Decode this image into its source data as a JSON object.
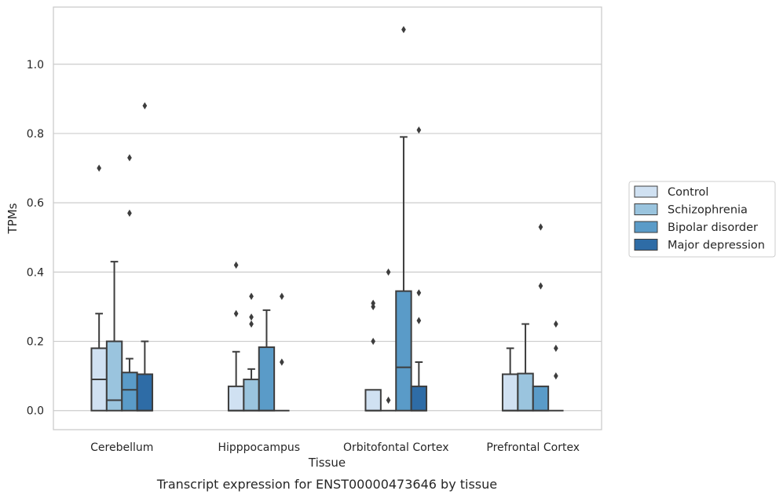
{
  "chart_data": {
    "type": "box",
    "caption": "Transcript expression for ENST00000473646 by tissue",
    "xlabel": "Tissue",
    "ylabel": "TPMs",
    "ylim": [
      -0.055,
      1.165
    ],
    "yticks": [
      0.0,
      0.2,
      0.4,
      0.6,
      0.8,
      1.0
    ],
    "ytick_labels": [
      "0.0",
      "0.2",
      "0.4",
      "0.6",
      "0.8",
      "1.0"
    ],
    "grid": "horizontal",
    "legend_position": "right",
    "categories": [
      "Cerebellum",
      "Hipppocampus",
      "Orbitofontal Cortex",
      "Prefrontal Cortex"
    ],
    "series": [
      {
        "name": "Control",
        "color": "#d0e1f2",
        "boxes": [
          {
            "q1": 0.0,
            "median": 0.09,
            "q3": 0.18,
            "whisker_low": 0.0,
            "whisker_high": 0.28,
            "outliers": [
              0.7
            ]
          },
          {
            "q1": 0.0,
            "median": 0.0,
            "q3": 0.07,
            "whisker_low": 0.0,
            "whisker_high": 0.17,
            "outliers": [
              0.28,
              0.42
            ]
          },
          {
            "q1": 0.0,
            "median": 0.0,
            "q3": 0.06,
            "whisker_low": 0.0,
            "whisker_high": 0.06,
            "outliers": [
              0.2,
              0.3,
              0.31
            ]
          },
          {
            "q1": 0.0,
            "median": 0.0,
            "q3": 0.105,
            "whisker_low": 0.0,
            "whisker_high": 0.18,
            "outliers": []
          }
        ]
      },
      {
        "name": "Schizophrenia",
        "color": "#9ac4de",
        "boxes": [
          {
            "q1": 0.0,
            "median": 0.03,
            "q3": 0.2,
            "whisker_low": 0.0,
            "whisker_high": 0.43,
            "outliers": []
          },
          {
            "q1": 0.0,
            "median": 0.0,
            "q3": 0.09,
            "whisker_low": 0.0,
            "whisker_high": 0.12,
            "outliers": [
              0.25,
              0.27,
              0.33
            ]
          },
          {
            "q1": 0.0,
            "median": 0.0,
            "q3": 0.0,
            "whisker_low": 0.0,
            "whisker_high": 0.0,
            "outliers": [
              0.03,
              0.4
            ]
          },
          {
            "q1": 0.0,
            "median": 0.0,
            "q3": 0.107,
            "whisker_low": 0.0,
            "whisker_high": 0.25,
            "outliers": []
          }
        ]
      },
      {
        "name": "Bipolar disorder",
        "color": "#5a9bc8",
        "boxes": [
          {
            "q1": 0.0,
            "median": 0.06,
            "q3": 0.11,
            "whisker_low": 0.0,
            "whisker_high": 0.15,
            "outliers": [
              0.57,
              0.73
            ]
          },
          {
            "q1": 0.0,
            "median": 0.0,
            "q3": 0.183,
            "whisker_low": 0.0,
            "whisker_high": 0.29,
            "outliers": []
          },
          {
            "q1": 0.0,
            "median": 0.125,
            "q3": 0.345,
            "whisker_low": 0.0,
            "whisker_high": 0.79,
            "outliers": [
              1.1
            ]
          },
          {
            "q1": 0.0,
            "median": 0.0,
            "q3": 0.07,
            "whisker_low": 0.0,
            "whisker_high": 0.07,
            "outliers": [
              0.36,
              0.53
            ]
          }
        ]
      },
      {
        "name": "Major depression",
        "color": "#2e6ca6",
        "boxes": [
          {
            "q1": 0.0,
            "median": 0.0,
            "q3": 0.105,
            "whisker_low": 0.0,
            "whisker_high": 0.2,
            "outliers": [
              0.88
            ]
          },
          {
            "q1": 0.0,
            "median": 0.0,
            "q3": 0.0,
            "whisker_low": 0.0,
            "whisker_high": 0.0,
            "outliers": [
              0.14,
              0.33
            ]
          },
          {
            "q1": 0.0,
            "median": 0.0,
            "q3": 0.07,
            "whisker_low": 0.0,
            "whisker_high": 0.14,
            "outliers": [
              0.26,
              0.34,
              0.81
            ]
          },
          {
            "q1": 0.0,
            "median": 0.0,
            "q3": 0.0,
            "whisker_low": 0.0,
            "whisker_high": 0.0,
            "outliers": [
              0.1,
              0.18,
              0.25
            ]
          }
        ]
      }
    ]
  }
}
